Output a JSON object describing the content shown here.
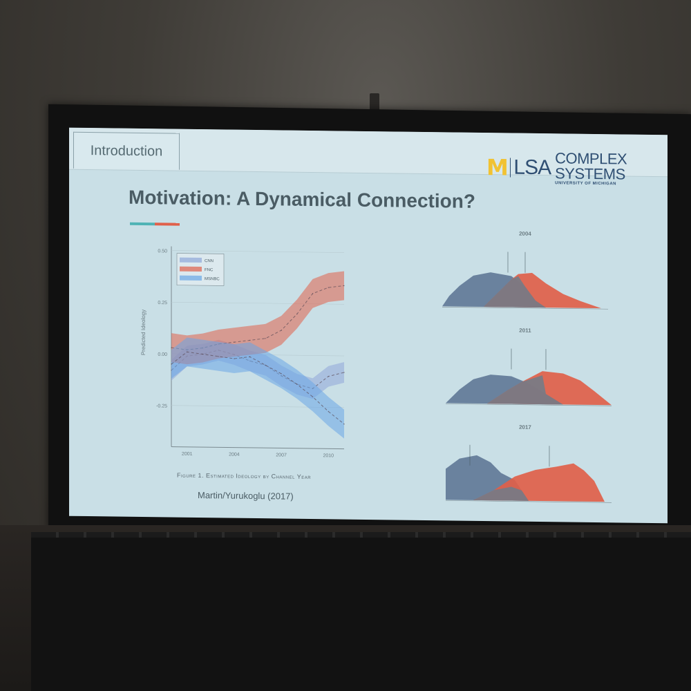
{
  "slide": {
    "section_tab": "Introduction",
    "logo": {
      "m": "M",
      "lsa": "LSA",
      "complex": "COMPLEX SYSTEMS",
      "university": "UNIVERSITY OF MICHIGAN"
    },
    "title": "Motivation: A Dynamical Connection?",
    "caption": "Figure 1. Estimated Ideology by Channel Year",
    "citation": "Martin/Yurukoglu (2017)"
  },
  "colors": {
    "slide_bg": "#c9dfe6",
    "cnn": "#8fa6d8",
    "fnc": "#e0604a",
    "msnbc": "#6aa6e6",
    "dist_blue": "#5f7896",
    "dist_red": "#e0604a",
    "accent_teal": "#4fb3b5"
  },
  "chart_data": {
    "type": "line",
    "ylabel": "Predicted Ideology",
    "xlabel": "",
    "x": [
      2000,
      2001,
      2002,
      2003,
      2004,
      2005,
      2006,
      2007,
      2008,
      2009,
      2010,
      2011
    ],
    "x_ticks": [
      "2001",
      "2004",
      "2007",
      "2010"
    ],
    "y_ticks": [
      "0.50",
      "0.25",
      "0.00",
      "-0.25"
    ],
    "ylim": [
      -0.45,
      0.52
    ],
    "legend_position": "top-left",
    "series": [
      {
        "name": "CNN",
        "values": [
          -0.08,
          -0.01,
          0.0,
          0.02,
          0.0,
          -0.03,
          -0.05,
          -0.1,
          -0.14,
          -0.16,
          -0.1,
          -0.08
        ],
        "band": 0.05
      },
      {
        "name": "FNC",
        "values": [
          0.03,
          0.02,
          0.03,
          0.05,
          0.06,
          0.07,
          0.08,
          0.12,
          0.2,
          0.3,
          0.33,
          0.34
        ],
        "band": 0.07
      },
      {
        "name": "MSNBC",
        "values": [
          -0.05,
          0.01,
          0.0,
          -0.01,
          -0.02,
          -0.01,
          -0.05,
          -0.09,
          -0.14,
          -0.2,
          -0.27,
          -0.33
        ],
        "band": 0.07
      }
    ]
  },
  "distributions": {
    "panels": [
      {
        "year": "2004"
      },
      {
        "year": "2011"
      },
      {
        "year": "2017"
      }
    ]
  }
}
